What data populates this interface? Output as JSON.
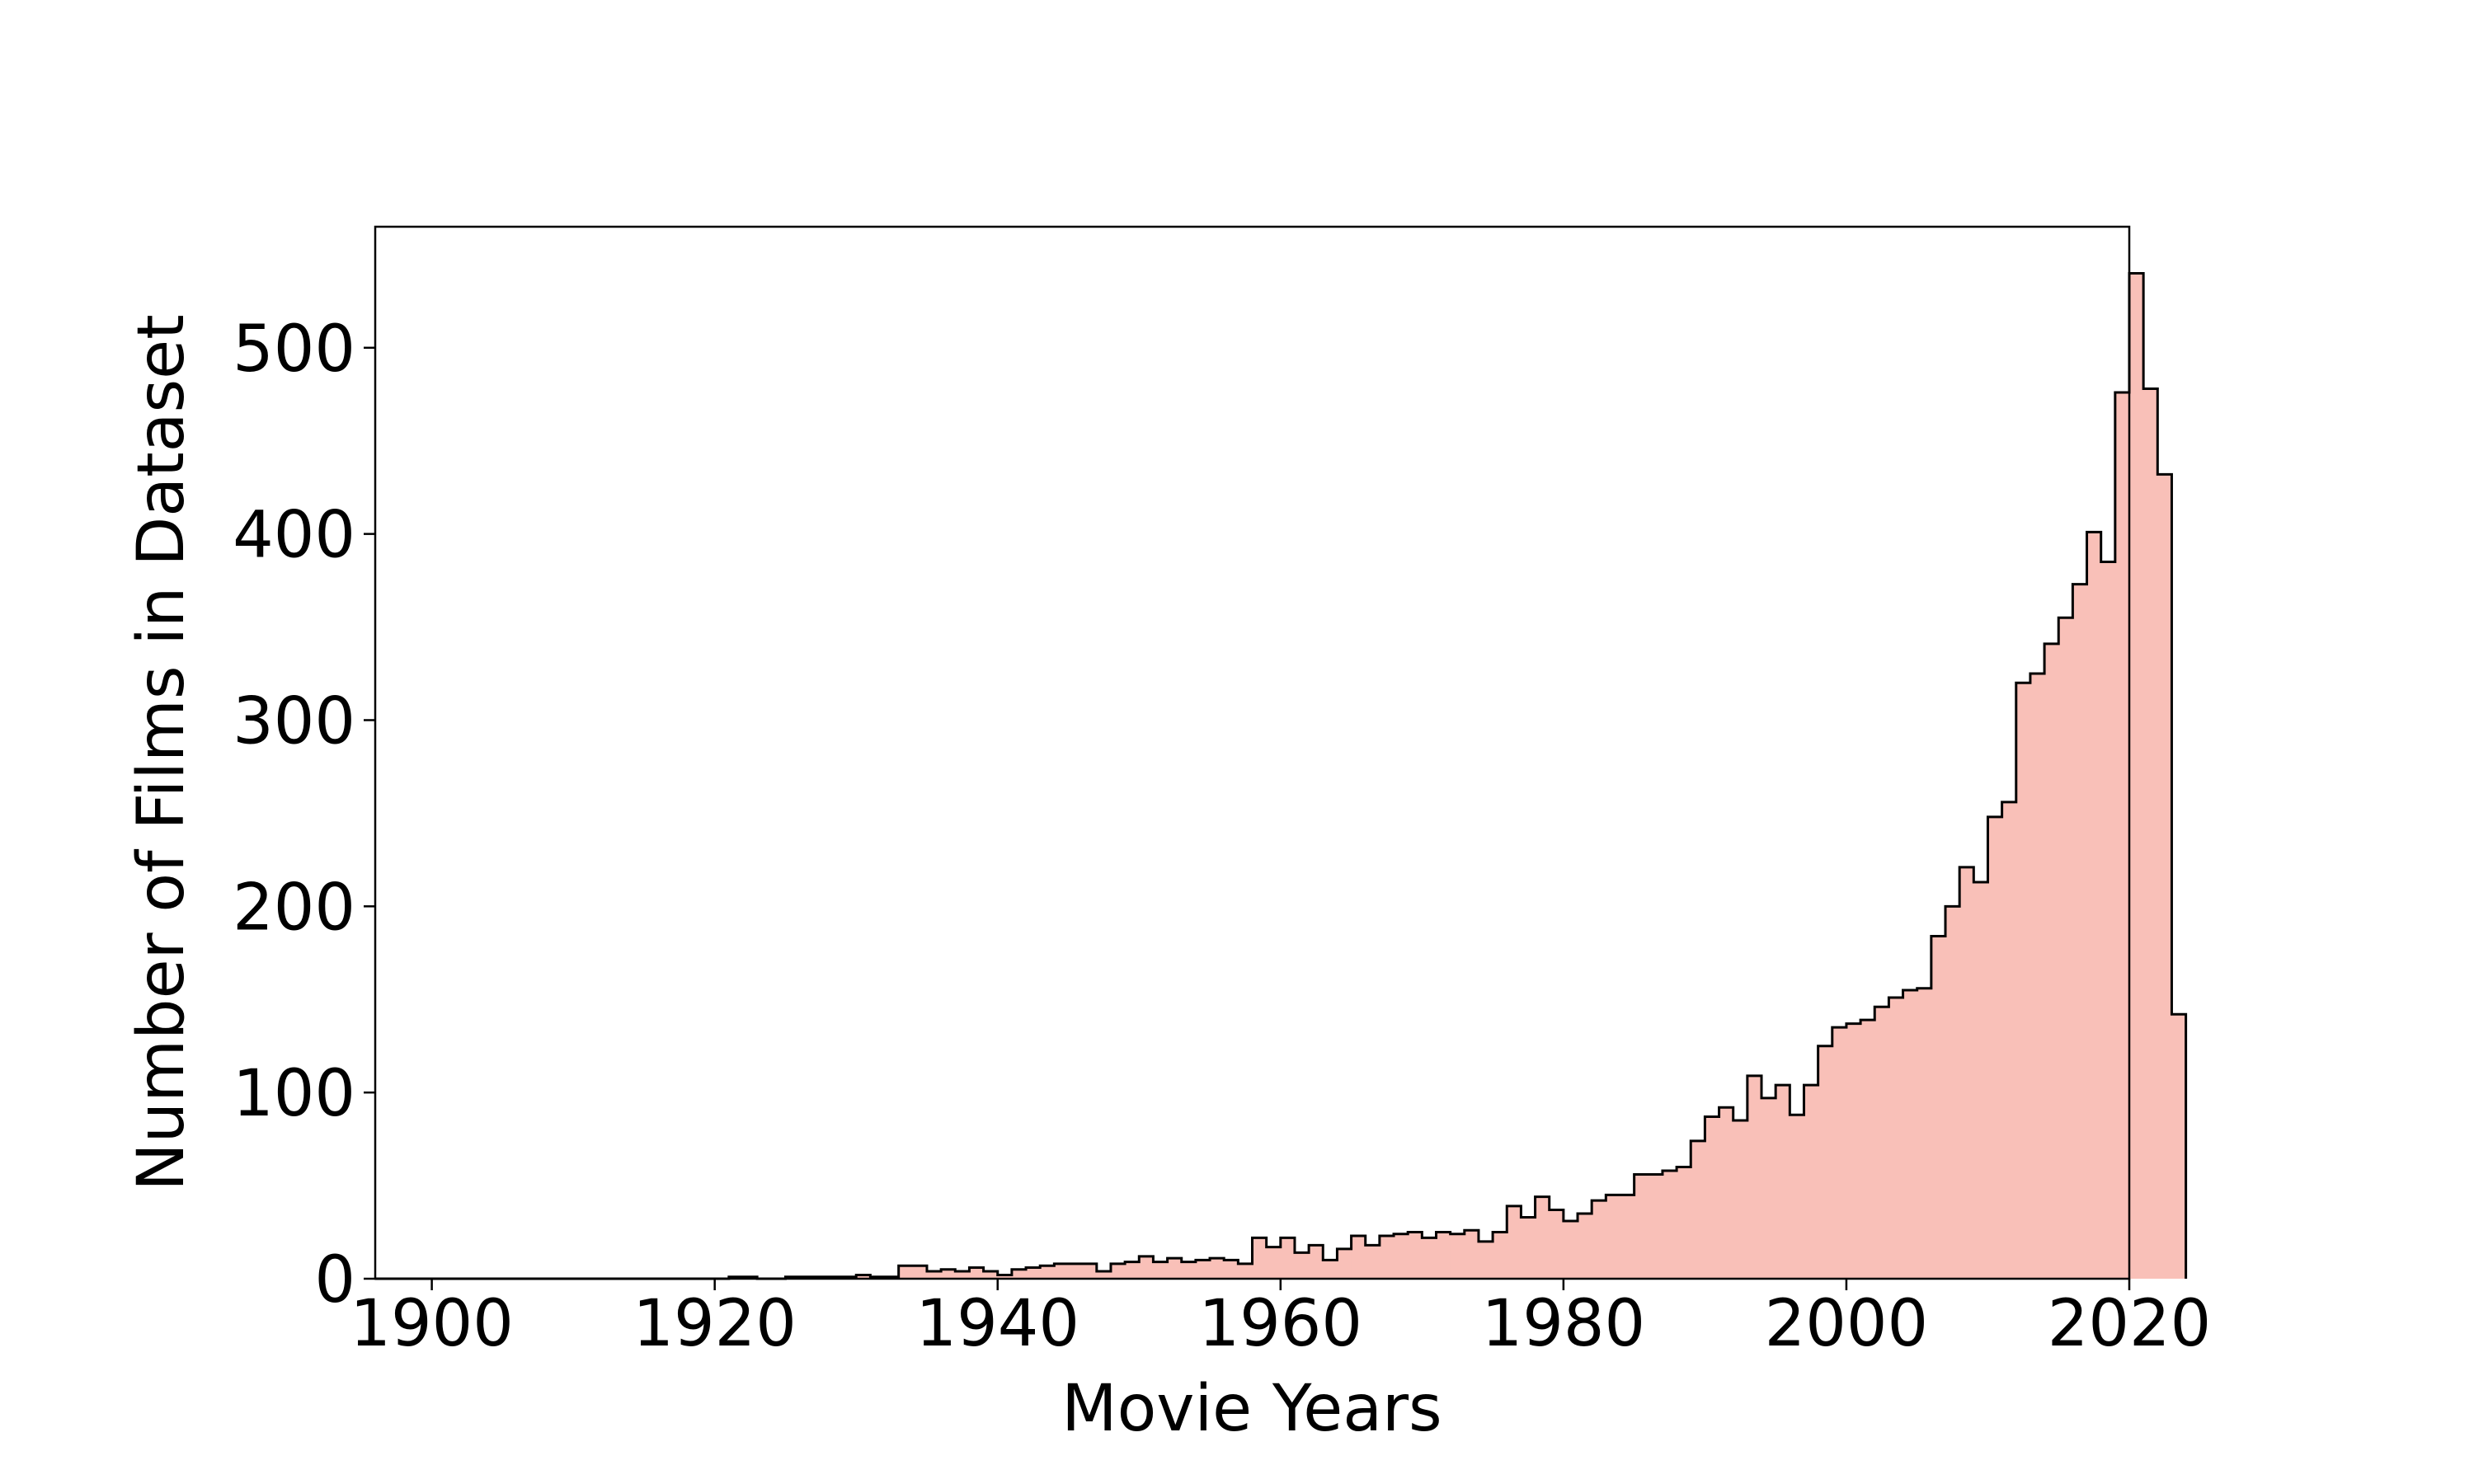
{
  "chart_data": {
    "type": "bar",
    "histogram": true,
    "title": "",
    "xlabel": "Movie Years",
    "ylabel": "Number of Films in Dataset",
    "xlim": [
      1896,
      2020
    ],
    "ylim": [
      0,
      565
    ],
    "x_ticks": [
      1900,
      1920,
      1940,
      1960,
      1980,
      2000,
      2020
    ],
    "y_ticks": [
      0,
      100,
      200,
      300,
      400,
      500
    ],
    "bin_start": 1896,
    "bin_width": 1,
    "values": [
      0,
      0,
      0,
      0,
      0,
      0,
      0,
      0,
      0,
      0,
      0,
      0,
      0,
      0,
      0,
      0,
      0,
      0,
      0,
      0,
      0,
      0,
      0,
      0,
      0,
      1,
      1,
      0,
      0,
      1,
      1,
      1,
      1,
      1,
      2,
      1,
      1,
      7,
      7,
      4,
      5,
      4,
      6,
      4,
      2,
      5,
      6,
      7,
      8,
      8,
      8,
      4,
      8,
      9,
      12,
      9,
      11,
      9,
      10,
      11,
      10,
      8,
      22,
      17,
      22,
      14,
      18,
      10,
      16,
      23,
      18,
      23,
      24,
      25,
      22,
      25,
      24,
      26,
      20,
      25,
      39,
      33,
      44,
      37,
      31,
      35,
      42,
      45,
      45,
      56,
      56,
      58,
      60,
      74,
      87,
      92,
      85,
      109,
      97,
      104,
      88,
      104,
      125,
      135,
      137,
      139,
      146,
      151,
      155,
      156,
      184,
      200,
      221,
      213,
      248,
      256,
      320,
      325,
      341,
      355,
      373,
      401,
      385,
      476,
      540,
      478,
      432,
      142
    ],
    "fill_color": "#f9c0b8",
    "edge_color": "#000000",
    "grid": false,
    "legend": "none"
  }
}
